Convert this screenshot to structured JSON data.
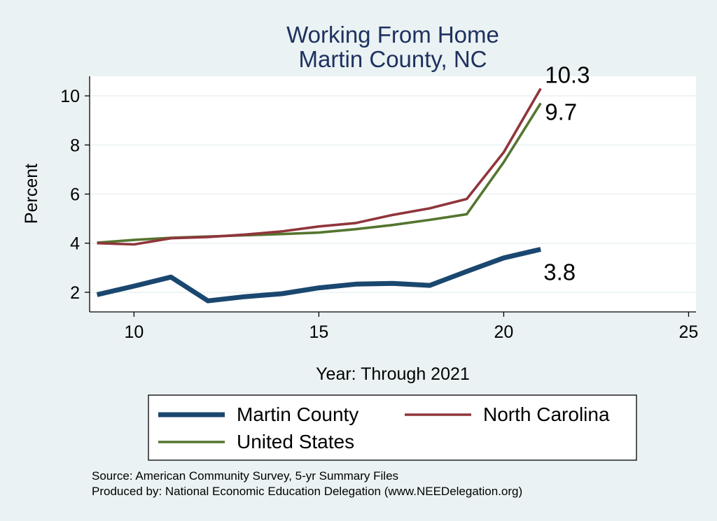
{
  "chart_data": {
    "type": "line",
    "title": "Working From Home",
    "subtitle": "Martin County, NC",
    "xlabel": "Year: Through 2021",
    "ylabel": "Percent",
    "xlim": [
      8.8,
      25.2
    ],
    "ylim": [
      1.2,
      10.8
    ],
    "xticks": [
      10,
      15,
      20,
      25
    ],
    "yticks": [
      2,
      4,
      6,
      8,
      10
    ],
    "grid": true,
    "legend_position": "bottom",
    "x": [
      9,
      10,
      11,
      12,
      13,
      14,
      15,
      16,
      17,
      18,
      19,
      20,
      21
    ],
    "series": [
      {
        "name": "Martin County",
        "color": "#1a476f",
        "values": [
          1.9,
          2.25,
          2.62,
          1.65,
          1.82,
          1.94,
          2.18,
          2.33,
          2.36,
          2.28,
          2.85,
          3.4,
          3.75
        ],
        "end_label": "3.8"
      },
      {
        "name": "North Carolina",
        "color": "#90353b",
        "values": [
          4.0,
          3.95,
          4.2,
          4.25,
          4.35,
          4.48,
          4.68,
          4.82,
          5.15,
          5.42,
          5.8,
          7.7,
          10.3
        ],
        "end_label": "10.3"
      },
      {
        "name": "United States",
        "color": "#55752f",
        "values": [
          4.02,
          4.13,
          4.22,
          4.27,
          4.32,
          4.37,
          4.43,
          4.57,
          4.74,
          4.95,
          5.18,
          7.3,
          9.7
        ],
        "end_label": "9.7"
      }
    ]
  },
  "notes": [
    "Source: American Community Survey, 5-yr Summary Files",
    "Produced by: National Economic Education Delegation (www.NEEDelegation.org)"
  ],
  "colors": {
    "outer_background": "#eaf2f3",
    "plot_background": "#ffffff",
    "title_color": "#1e3160",
    "grid_color": "#eaf2f3"
  }
}
